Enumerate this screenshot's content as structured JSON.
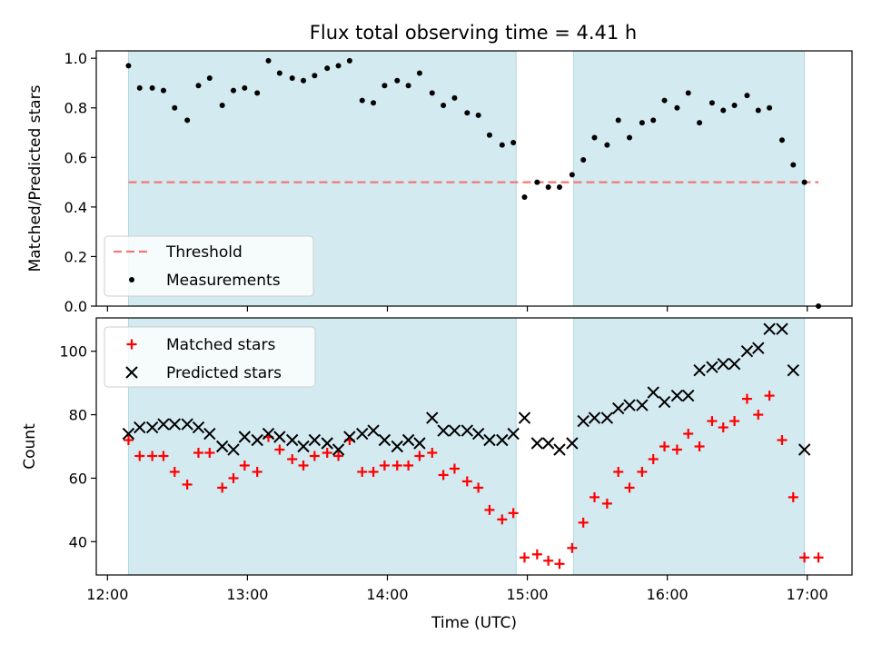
{
  "chart_data": {
    "type": "scatter",
    "title": "Flux total observing time = 4.41 h",
    "xlabel": "Time (UTC)",
    "x_tick_labels": [
      "12:00",
      "13:00",
      "14:00",
      "15:00",
      "16:00",
      "17:00"
    ],
    "x_tick_hours": [
      12,
      13,
      14,
      15,
      16,
      17
    ],
    "xlim": [
      11.92,
      17.32
    ],
    "shaded_intervals": [
      [
        12.15,
        14.92
      ],
      [
        15.33,
        16.98
      ]
    ],
    "colors": {
      "shade": "#d3eaf0",
      "threshold": "#f07878",
      "matched": "#ff0000",
      "predicted": "#000000",
      "measurement": "#000000"
    },
    "top": {
      "ylabel": "Matched/Predicted stars",
      "ylim": [
        0,
        1.03
      ],
      "yticks": [
        0.0,
        0.2,
        0.4,
        0.6,
        0.8,
        1.0
      ],
      "ytick_labels": [
        "0.0",
        "0.2",
        "0.4",
        "0.6",
        "0.8",
        "1.0"
      ],
      "threshold": 0.5,
      "threshold_range": [
        12.15,
        17.08
      ],
      "legend": [
        "Threshold",
        "Measurements"
      ],
      "measurements_x": [
        12.15,
        12.23,
        12.32,
        12.4,
        12.48,
        12.57,
        12.65,
        12.73,
        12.82,
        12.9,
        12.98,
        13.07,
        13.15,
        13.23,
        13.32,
        13.4,
        13.48,
        13.57,
        13.65,
        13.73,
        13.82,
        13.9,
        13.98,
        14.07,
        14.15,
        14.23,
        14.32,
        14.4,
        14.48,
        14.57,
        14.65,
        14.73,
        14.82,
        14.9,
        14.98,
        15.07,
        15.15,
        15.23,
        15.32,
        15.4,
        15.48,
        15.57,
        15.65,
        15.73,
        15.82,
        15.9,
        15.98,
        16.07,
        16.15,
        16.23,
        16.32,
        16.4,
        16.48,
        16.57,
        16.65,
        16.73,
        16.82,
        16.9,
        16.98,
        17.08
      ],
      "measurements_y": [
        0.97,
        0.88,
        0.88,
        0.87,
        0.8,
        0.75,
        0.89,
        0.92,
        0.81,
        0.87,
        0.88,
        0.86,
        0.99,
        0.94,
        0.92,
        0.91,
        0.93,
        0.96,
        0.97,
        0.99,
        0.83,
        0.82,
        0.89,
        0.91,
        0.89,
        0.94,
        0.86,
        0.81,
        0.84,
        0.78,
        0.77,
        0.69,
        0.65,
        0.66,
        0.44,
        0.5,
        0.48,
        0.48,
        0.53,
        0.59,
        0.68,
        0.65,
        0.75,
        0.68,
        0.74,
        0.75,
        0.83,
        0.8,
        0.86,
        0.74,
        0.82,
        0.79,
        0.81,
        0.85,
        0.79,
        0.8,
        0.67,
        0.57,
        0.5,
        0.0
      ]
    },
    "bottom": {
      "ylabel": "Count",
      "ylim": [
        29.5,
        110.5
      ],
      "yticks": [
        40,
        60,
        80,
        100
      ],
      "ytick_labels": [
        "40",
        "60",
        "80",
        "100"
      ],
      "legend": [
        "Matched stars",
        "Predicted stars"
      ],
      "matched_x": [
        12.15,
        12.23,
        12.32,
        12.4,
        12.48,
        12.57,
        12.65,
        12.73,
        12.82,
        12.9,
        12.98,
        13.07,
        13.15,
        13.23,
        13.32,
        13.4,
        13.48,
        13.57,
        13.65,
        13.73,
        13.82,
        13.9,
        13.98,
        14.07,
        14.15,
        14.23,
        14.32,
        14.4,
        14.48,
        14.57,
        14.65,
        14.73,
        14.82,
        14.9,
        14.98,
        15.07,
        15.15,
        15.23,
        15.32,
        15.4,
        15.48,
        15.57,
        15.65,
        15.73,
        15.82,
        15.9,
        15.98,
        16.07,
        16.15,
        16.23,
        16.32,
        16.4,
        16.48,
        16.57,
        16.65,
        16.73,
        16.82,
        16.9,
        16.98,
        17.08
      ],
      "matched_y": [
        72,
        67,
        67,
        67,
        62,
        58,
        68,
        68,
        57,
        60,
        64,
        62,
        73,
        69,
        66,
        64,
        67,
        68,
        67,
        72,
        62,
        62,
        64,
        64,
        64,
        67,
        68,
        61,
        63,
        59,
        57,
        50,
        47,
        49,
        35,
        36,
        34,
        33,
        38,
        46,
        54,
        52,
        62,
        57,
        62,
        66,
        70,
        69,
        74,
        70,
        78,
        76,
        78,
        85,
        80,
        86,
        72,
        54,
        35,
        35
      ],
      "predicted_x": [
        12.15,
        12.23,
        12.32,
        12.4,
        12.48,
        12.57,
        12.65,
        12.73,
        12.82,
        12.9,
        12.98,
        13.07,
        13.15,
        13.23,
        13.32,
        13.4,
        13.48,
        13.57,
        13.65,
        13.73,
        13.82,
        13.9,
        13.98,
        14.07,
        14.15,
        14.23,
        14.32,
        14.4,
        14.48,
        14.57,
        14.65,
        14.73,
        14.82,
        14.9,
        14.98,
        15.07,
        15.15,
        15.23,
        15.32,
        15.4,
        15.48,
        15.57,
        15.65,
        15.73,
        15.82,
        15.9,
        15.98,
        16.07,
        16.15,
        16.23,
        16.32,
        16.4,
        16.48,
        16.57,
        16.65,
        16.73,
        16.82,
        16.9,
        16.98
      ],
      "predicted_y": [
        74,
        76,
        76,
        77,
        77,
        77,
        76,
        74,
        70,
        69,
        73,
        72,
        74,
        73,
        72,
        70,
        72,
        71,
        69,
        73,
        74,
        75,
        72,
        70,
        72,
        71,
        79,
        75,
        75,
        75,
        74,
        72,
        72,
        74,
        79,
        71,
        71,
        69,
        71,
        78,
        79,
        79,
        82,
        83,
        83,
        87,
        84,
        86,
        86,
        94,
        95,
        96,
        96,
        100,
        101,
        107,
        107,
        94,
        69
      ]
    }
  }
}
